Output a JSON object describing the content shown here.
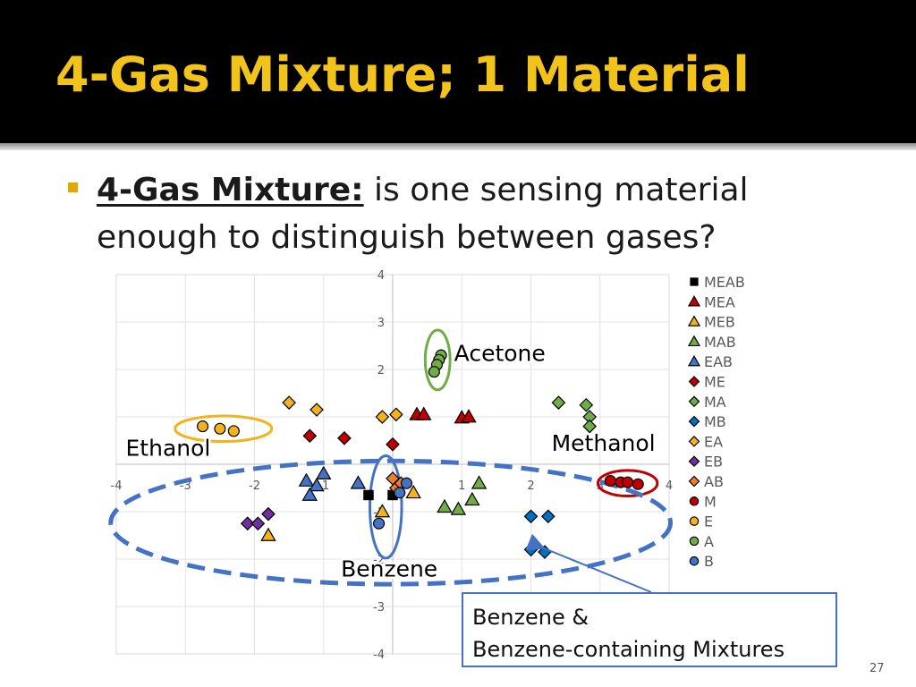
{
  "slide": {
    "title": "4-Gas Mixture; 1 Material",
    "bullet_lead": "4-Gas Mixture:",
    "bullet_rest": " is one sensing material enough to distinguish between gases?",
    "page_number": "27",
    "callout_line1": "Benzene &",
    "callout_line2": "Benzene-containing Mixtures"
  },
  "chart_data": {
    "type": "scatter",
    "xlim": [
      -4,
      4
    ],
    "ylim": [
      -4,
      4
    ],
    "x_ticks": [
      "-4",
      "-3",
      "-2",
      "-1",
      "1",
      "2",
      "3",
      "4"
    ],
    "y_ticks": [
      "4",
      "3",
      "2",
      "1",
      "-1",
      "-2",
      "-3",
      "-4"
    ],
    "grid": true,
    "legend_position": "right",
    "annotations": [
      {
        "text": "Acetone",
        "x": 1.55,
        "y": 2.35
      },
      {
        "text": "Ethanol",
        "x": -3.25,
        "y": 0.35
      },
      {
        "text": "Methanol",
        "x": 3.05,
        "y": 0.45
      },
      {
        "text": "Benzene",
        "x": -0.05,
        "y": -2.2
      }
    ],
    "clusters": [
      {
        "cx": 0.65,
        "cy": 2.2,
        "rx": 0.18,
        "ry": 0.63,
        "color": "#70ad47",
        "style": "solid"
      },
      {
        "cx": -2.45,
        "cy": 0.75,
        "rx": 0.7,
        "ry": 0.27,
        "color": "#f2b41c",
        "style": "solid"
      },
      {
        "cx": 3.4,
        "cy": -0.4,
        "rx": 0.43,
        "ry": 0.27,
        "color": "#c00000",
        "style": "solid"
      },
      {
        "cx": -0.1,
        "cy": -0.9,
        "rx": 0.23,
        "ry": 1.08,
        "color": "#4472c4",
        "style": "solid"
      },
      {
        "cx": -0.03,
        "cy": -1.23,
        "rx": 4.05,
        "ry": 1.3,
        "color": "#4472c4",
        "style": "dashed"
      }
    ],
    "series": [
      {
        "name": "MEAB",
        "marker": "square",
        "color": "#000000",
        "points": [
          [
            -0.35,
            -0.65
          ],
          [
            0.0,
            -0.65
          ]
        ]
      },
      {
        "name": "MEA",
        "marker": "triangle",
        "color": "#c00000",
        "points": [
          [
            0.35,
            1.05
          ],
          [
            0.45,
            1.05
          ],
          [
            1.0,
            0.98
          ],
          [
            1.1,
            1.0
          ]
        ]
      },
      {
        "name": "MEB",
        "marker": "triangle",
        "color": "#f2b41c",
        "points": [
          [
            -0.15,
            -1.0
          ],
          [
            0.3,
            -0.6
          ],
          [
            -1.8,
            -1.5
          ]
        ]
      },
      {
        "name": "MAB",
        "marker": "triangle",
        "color": "#70ad47",
        "points": [
          [
            0.75,
            -0.9
          ],
          [
            0.95,
            -0.95
          ],
          [
            1.15,
            -0.75
          ],
          [
            1.25,
            -0.4
          ]
        ]
      },
      {
        "name": "EAB",
        "marker": "triangle",
        "color": "#4472c4",
        "points": [
          [
            -1.25,
            -0.35
          ],
          [
            -1.1,
            -0.45
          ],
          [
            -1.0,
            -0.2
          ],
          [
            -1.2,
            -0.65
          ],
          [
            -0.5,
            -0.4
          ]
        ]
      },
      {
        "name": "ME",
        "marker": "diamond",
        "color": "#c00000",
        "points": [
          [
            -1.2,
            0.6
          ],
          [
            -0.7,
            0.55
          ],
          [
            0.0,
            0.42
          ]
        ]
      },
      {
        "name": "MA",
        "marker": "diamond",
        "color": "#70ad47",
        "points": [
          [
            2.4,
            1.3
          ],
          [
            2.8,
            1.25
          ],
          [
            2.85,
            1.0
          ],
          [
            2.85,
            0.8
          ]
        ]
      },
      {
        "name": "MB",
        "marker": "diamond",
        "color": "#0070c0",
        "points": [
          [
            2.0,
            -1.1
          ],
          [
            2.25,
            -1.1
          ],
          [
            2.0,
            -1.8
          ],
          [
            2.2,
            -1.85
          ]
        ]
      },
      {
        "name": "EA",
        "marker": "diamond",
        "color": "#f2b41c",
        "points": [
          [
            -1.5,
            1.3
          ],
          [
            -1.1,
            1.15
          ],
          [
            -0.15,
            1.0
          ],
          [
            0.05,
            1.05
          ]
        ]
      },
      {
        "name": "EB",
        "marker": "diamond",
        "color": "#7030a0",
        "points": [
          [
            -2.1,
            -1.25
          ],
          [
            -1.95,
            -1.25
          ],
          [
            -1.8,
            -1.05
          ]
        ]
      },
      {
        "name": "AB",
        "marker": "diamond",
        "color": "#ed7d31",
        "points": [
          [
            0.0,
            -0.3
          ],
          [
            0.05,
            -0.5
          ],
          [
            0.12,
            -0.4
          ]
        ]
      },
      {
        "name": "M",
        "marker": "circle",
        "color": "#c00000",
        "points": [
          [
            3.15,
            -0.35
          ],
          [
            3.3,
            -0.38
          ],
          [
            3.4,
            -0.38
          ],
          [
            3.55,
            -0.42
          ]
        ]
      },
      {
        "name": "E",
        "marker": "circle",
        "color": "#f2b41c",
        "points": [
          [
            -2.75,
            0.8
          ],
          [
            -2.5,
            0.75
          ],
          [
            -2.3,
            0.7
          ]
        ]
      },
      {
        "name": "A",
        "marker": "circle",
        "color": "#70ad47",
        "points": [
          [
            0.7,
            2.3
          ],
          [
            0.67,
            2.2
          ],
          [
            0.64,
            2.1
          ],
          [
            0.6,
            1.95
          ]
        ]
      },
      {
        "name": "B",
        "marker": "circle",
        "color": "#4472c4",
        "points": [
          [
            0.2,
            -0.4
          ],
          [
            0.1,
            -0.6
          ],
          [
            -0.2,
            -1.25
          ]
        ]
      }
    ]
  }
}
